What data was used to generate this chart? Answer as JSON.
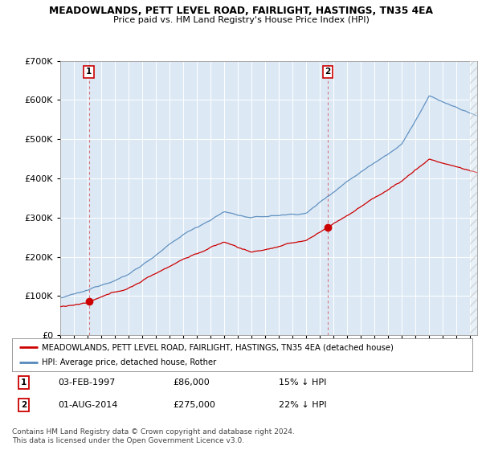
{
  "title1": "MEADOWLANDS, PETT LEVEL ROAD, FAIRLIGHT, HASTINGS, TN35 4EA",
  "title2": "Price paid vs. HM Land Registry's House Price Index (HPI)",
  "legend_red": "MEADOWLANDS, PETT LEVEL ROAD, FAIRLIGHT, HASTINGS, TN35 4EA (detached house)",
  "legend_blue": "HPI: Average price, detached house, Rother",
  "annotation1_date": "03-FEB-1997",
  "annotation1_price": "£86,000",
  "annotation1_hpi": "15% ↓ HPI",
  "annotation2_date": "01-AUG-2014",
  "annotation2_price": "£275,000",
  "annotation2_hpi": "22% ↓ HPI",
  "footer": "Contains HM Land Registry data © Crown copyright and database right 2024.\nThis data is licensed under the Open Government Licence v3.0.",
  "sale1_year": 1997.09,
  "sale1_price": 86000,
  "sale2_year": 2014.58,
  "sale2_price": 275000,
  "background_color": "#ffffff",
  "plot_bg_color": "#dce9f5",
  "grid_color": "#ffffff",
  "red_color": "#cc0000",
  "blue_color": "#5588bb",
  "ylim_max": 700000,
  "xstart": 1995,
  "xend": 2025.5
}
